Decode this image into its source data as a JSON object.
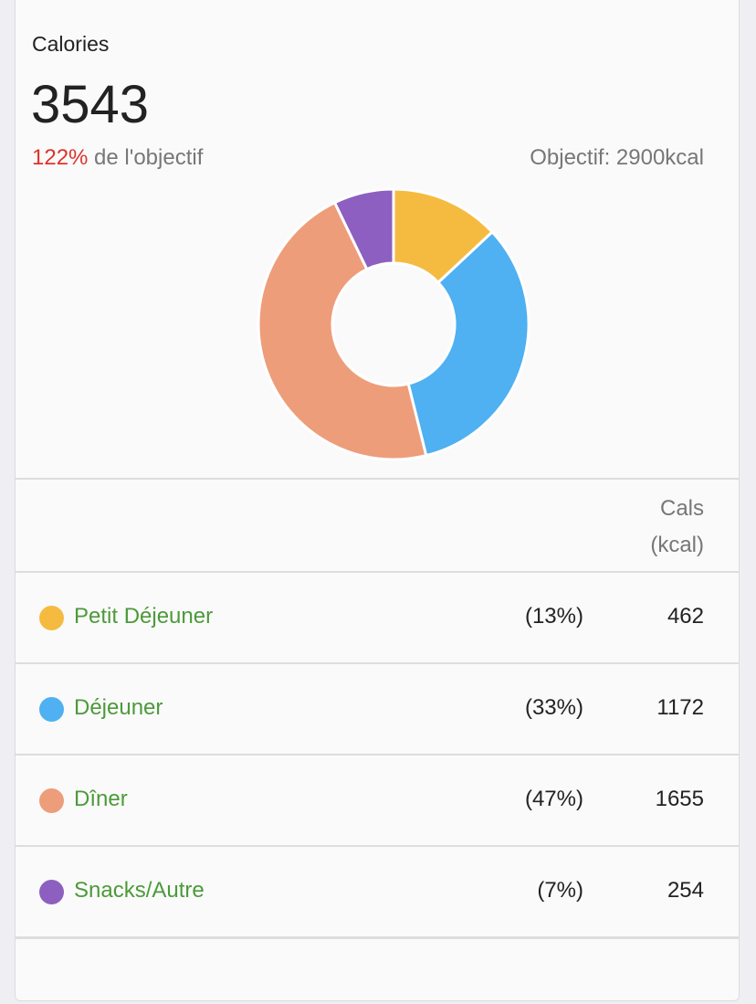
{
  "card": {
    "title": "Calories",
    "total": "3543",
    "percent": "122%",
    "percent_suffix": " de l'objectif",
    "goal": "Objectif: 2900kcal"
  },
  "table": {
    "header_line1": "Cals",
    "header_line2": "(kcal)",
    "rows": [
      {
        "name": "Petit Déjeuner",
        "pct": "(13%)",
        "cals": "462",
        "color": "#f5bb41"
      },
      {
        "name": "Déjeuner",
        "pct": "(33%)",
        "cals": "1172",
        "color": "#4fb0f2"
      },
      {
        "name": "Dîner",
        "pct": "(47%)",
        "cals": "1655",
        "color": "#ee9d7a"
      },
      {
        "name": "Snacks/Autre",
        "pct": "(7%)",
        "cals": "254",
        "color": "#8c5fc0"
      }
    ]
  },
  "chart_data": {
    "type": "pie",
    "variant": "donut",
    "categories": [
      "Petit Déjeuner",
      "Déjeuner",
      "Dîner",
      "Snacks/Autre"
    ],
    "values": [
      462,
      1172,
      1655,
      254
    ],
    "colors": [
      "#f5bb41",
      "#4fb0f2",
      "#ee9d7a",
      "#8c5fc0"
    ]
  }
}
